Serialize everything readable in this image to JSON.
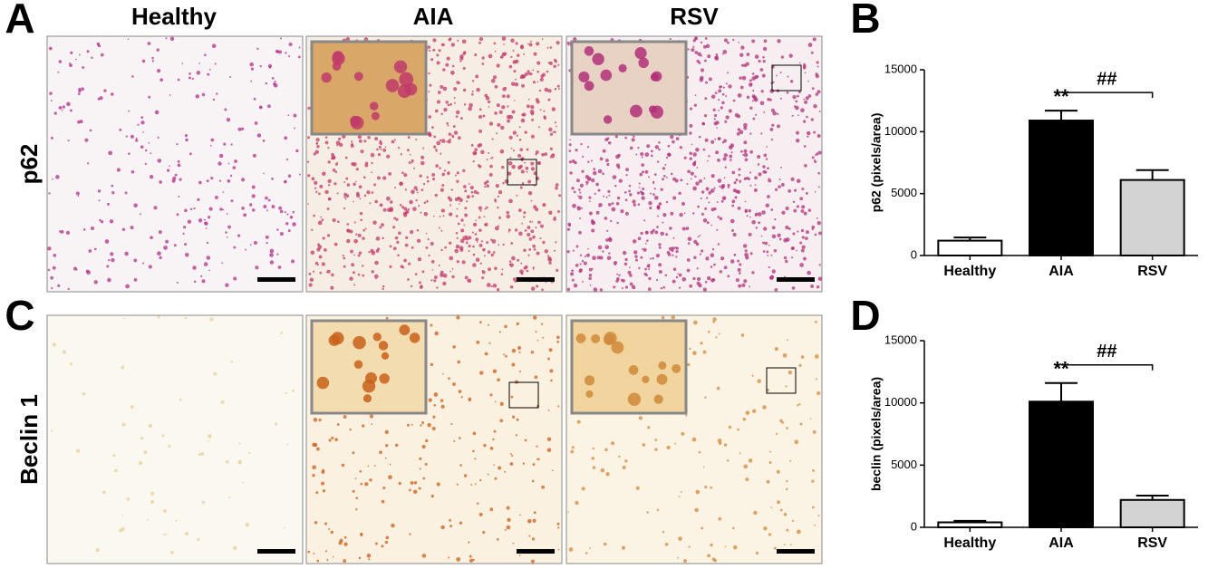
{
  "figure": {
    "panel_labels": [
      "A",
      "B",
      "C",
      "D"
    ],
    "columns": [
      "Healthy",
      "AIA",
      "RSV"
    ],
    "rows": [
      "p62",
      "Beclin 1"
    ]
  },
  "chart_data": [
    {
      "type": "bar",
      "ylabel": "p62 (pixels/area)",
      "categories": [
        "Healthy",
        "AIA",
        "RSV"
      ],
      "values": [
        1200,
        10900,
        6100
      ],
      "errors": [
        250,
        800,
        800
      ],
      "colors": [
        "#ffffff",
        "#000000",
        "#d3d3d3"
      ],
      "ylim": [
        0,
        15000
      ],
      "yticks": [
        0,
        5000,
        10000,
        15000
      ],
      "annotations": [
        "**",
        "##"
      ]
    },
    {
      "type": "bar",
      "ylabel": "beclin (pixels/area)",
      "categories": [
        "Healthy",
        "AIA",
        "RSV"
      ],
      "values": [
        400,
        10100,
        2200
      ],
      "errors": [
        120,
        1500,
        350
      ],
      "colors": [
        "#ffffff",
        "#000000",
        "#d3d3d3"
      ],
      "ylim": [
        0,
        15000
      ],
      "yticks": [
        0,
        5000,
        10000,
        15000
      ],
      "annotations": [
        "**",
        "##"
      ]
    }
  ]
}
